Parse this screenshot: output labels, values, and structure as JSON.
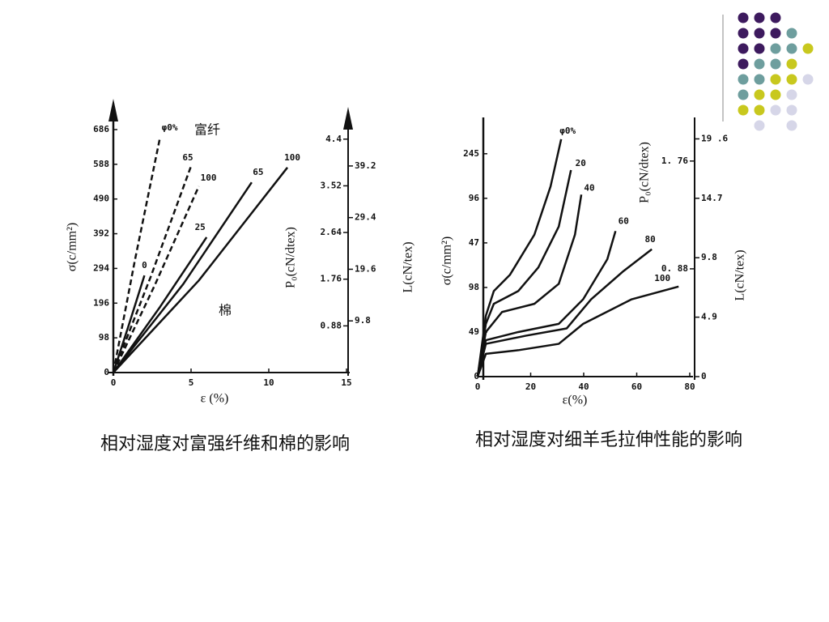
{
  "chart_data": [
    {
      "type": "line",
      "title": "相对湿度对富强纤维和棉的影响",
      "xlabel": "ε (%)",
      "ylabel": "σ(c/mm²)",
      "y2label": "P₀(cN/dtex)",
      "y3label": "L(cN/tex)",
      "annotations": [
        "富纤",
        "棉"
      ],
      "xlim": [
        0,
        15
      ],
      "xticks": [
        0,
        5,
        10,
        15
      ],
      "ylim": [
        0,
        686
      ],
      "yticks": [
        0,
        98,
        196,
        294,
        392,
        490,
        588,
        686
      ],
      "y2lim": [
        0,
        4.58
      ],
      "y2ticks": [
        0.88,
        1.76,
        2.64,
        3.52,
        4.4
      ],
      "y3lim": [
        0,
        46.1
      ],
      "y3ticks": [
        9.8,
        19.6,
        29.4,
        39.2
      ],
      "grid": false,
      "series": [
        {
          "name": "φ0%",
          "color": "#111111",
          "dash": true,
          "x": [
            0,
            1.4,
            3.0
          ],
          "values": [
            0,
            320,
            663
          ]
        },
        {
          "name": "65",
          "color": "#111111",
          "dash": true,
          "x": [
            0,
            2.4,
            5.0
          ],
          "values": [
            0,
            270,
            583
          ]
        },
        {
          "name": "100",
          "color": "#111111",
          "dash": true,
          "x": [
            0,
            2.7,
            5.5
          ],
          "values": [
            0,
            250,
            526
          ]
        },
        {
          "name": "0",
          "color": "#111111",
          "dash": false,
          "x": [
            0,
            1.0,
            2.0
          ],
          "values": [
            0,
            135,
            274
          ]
        },
        {
          "name": "25",
          "color": "#111111",
          "dash": false,
          "x": [
            0,
            3.0,
            6.0
          ],
          "values": [
            0,
            185,
            382
          ]
        },
        {
          "name": "65",
          "color": "#111111",
          "dash": false,
          "x": [
            0,
            4.5,
            8.9
          ],
          "values": [
            0,
            250,
            537
          ]
        },
        {
          "name": "100",
          "color": "#111111",
          "dash": false,
          "x": [
            0,
            5.5,
            11.2
          ],
          "values": [
            0,
            260,
            579
          ]
        }
      ]
    },
    {
      "type": "line",
      "title": "相对湿度对细羊毛拉伸性能的影响",
      "xlabel": "ε(%)",
      "ylabel": "σ(c/mm²)",
      "y2label": "P₀(cN/dtex)",
      "y3label": "L(cN/tex)",
      "xlim": [
        0,
        80
      ],
      "xticks": [
        0,
        20,
        40,
        60,
        80
      ],
      "ylim": [
        0,
        276
      ],
      "yticks": [
        0,
        49,
        98,
        {
          "value": 147,
          "label": "47"
        },
        {
          "value": 196,
          "label": "96"
        },
        245
      ],
      "y2lim": [
        0,
        2.05
      ],
      "y2ticks": [
        {
          "value": 0.88,
          "label": "0. 88"
        },
        {
          "value": 1.76,
          "label": "1. 76"
        }
      ],
      "y3lim": [
        0,
        20.7
      ],
      "y3ticks": [
        0,
        4.9,
        {
          "value": 9.8,
          "label": "9.8"
        },
        14.7,
        {
          "value": 19.6,
          "label": "19 .6"
        }
      ],
      "grid": false,
      "series": [
        {
          "name": "φ0%",
          "color": "#111111",
          "x": [
            0,
            3.1,
            6.1,
            12.2,
            21.4,
            27.5,
            31.5
          ],
          "values": [
            0,
            67,
            94,
            112,
            156,
            209,
            261
          ]
        },
        {
          "name": "20",
          "color": "#111111",
          "x": [
            0,
            3.1,
            6.1,
            15.3,
            22.9,
            30.6,
            35.2
          ],
          "values": [
            0,
            58,
            80,
            94,
            120,
            165,
            227
          ]
        },
        {
          "name": "40",
          "color": "#111111",
          "x": [
            0,
            3.1,
            9.2,
            21.4,
            30.6,
            36.7,
            39.1
          ],
          "values": [
            0,
            49,
            71,
            80,
            102,
            156,
            200
          ]
        },
        {
          "name": "60",
          "color": "#111111",
          "x": [
            0,
            3.1,
            15.3,
            30.6,
            39.8,
            48.9,
            52.0
          ],
          "values": [
            0,
            40,
            49,
            58,
            85,
            129,
            160
          ]
        },
        {
          "name": "80",
          "color": "#111111",
          "x": [
            0,
            3.1,
            18.3,
            33.6,
            42.8,
            55.0,
            65.7
          ],
          "values": [
            0,
            36,
            45,
            53,
            85,
            116,
            140
          ]
        },
        {
          "name": "100",
          "color": "#111111",
          "x": [
            0,
            3.1,
            15.3,
            30.6,
            39.8,
            58.1,
            75.8
          ],
          "values": [
            0,
            25,
            29,
            36,
            58,
            85,
            99
          ]
        }
      ]
    }
  ]
}
